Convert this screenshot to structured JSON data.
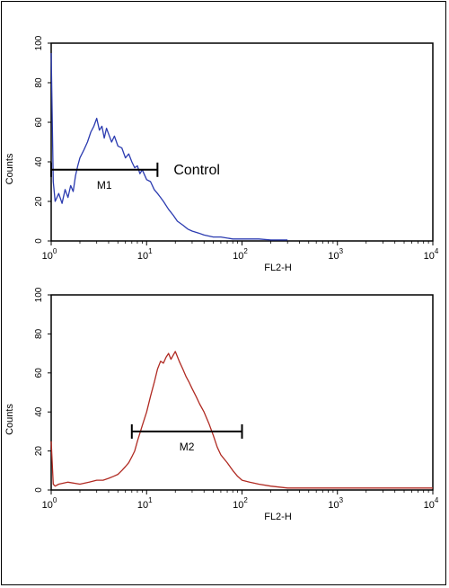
{
  "chart_data": [
    {
      "type": "line",
      "xscale": "log",
      "xlim": [
        1,
        10000
      ],
      "ylim": [
        0,
        100
      ],
      "xlabel": "FL2-H",
      "ylabel": "Counts",
      "y_ticks": [
        "0",
        "20",
        "40",
        "60",
        "80",
        "100"
      ],
      "x_ticks": [
        {
          "base": "10",
          "exp": "0"
        },
        {
          "base": "10",
          "exp": "1"
        },
        {
          "base": "10",
          "exp": "2"
        },
        {
          "base": "10",
          "exp": "3"
        },
        {
          "base": "10",
          "exp": "4"
        }
      ],
      "annotation": "Control",
      "series": [
        {
          "color": "#2b3bb0",
          "x": [
            1.0,
            1.05,
            1.1,
            1.2,
            1.3,
            1.4,
            1.5,
            1.6,
            1.7,
            1.8,
            1.9,
            2.0,
            2.2,
            2.4,
            2.6,
            2.8,
            3.0,
            3.2,
            3.4,
            3.6,
            3.8,
            4.0,
            4.3,
            4.6,
            5.0,
            5.5,
            6.0,
            6.5,
            7.0,
            7.5,
            8.0,
            8.5,
            9.0,
            10.0,
            11.0,
            12.0,
            13.0,
            14.0,
            15.0,
            17.0,
            19.0,
            21.0,
            24.0,
            27.0,
            30.0,
            35.0,
            40.0,
            50.0,
            60.0,
            80.0,
            100.0,
            150.0,
            200.0,
            300.0
          ],
          "y": [
            95,
            30,
            20,
            24,
            19,
            26,
            22,
            28,
            25,
            33,
            38,
            42,
            46,
            50,
            55,
            58,
            62,
            56,
            58,
            52,
            57,
            54,
            50,
            53,
            48,
            47,
            42,
            44,
            40,
            37,
            38,
            34,
            36,
            31,
            30,
            26,
            24,
            22,
            20,
            16,
            13,
            10,
            8,
            6,
            5,
            4,
            3,
            2,
            2,
            1,
            1,
            1,
            0.5,
            0.5
          ]
        }
      ],
      "markers": [
        {
          "label": "M1",
          "x_start": 1.0,
          "x_end": 13.0,
          "y": 36
        }
      ]
    },
    {
      "type": "line",
      "xscale": "log",
      "xlim": [
        1,
        10000
      ],
      "ylim": [
        0,
        100
      ],
      "xlabel": "FL2-H",
      "ylabel": "Counts",
      "y_ticks": [
        "0",
        "20",
        "40",
        "60",
        "80",
        "100"
      ],
      "x_ticks": [
        {
          "base": "10",
          "exp": "0"
        },
        {
          "base": "10",
          "exp": "1"
        },
        {
          "base": "10",
          "exp": "2"
        },
        {
          "base": "10",
          "exp": "3"
        },
        {
          "base": "10",
          "exp": "4"
        }
      ],
      "annotation": "",
      "series": [
        {
          "color": "#b02a22",
          "x": [
            1.0,
            1.05,
            1.1,
            1.2,
            1.5,
            2.0,
            2.5,
            3.0,
            3.5,
            4.0,
            4.5,
            5.0,
            5.5,
            6.0,
            6.5,
            7.0,
            7.5,
            8.0,
            9.0,
            10.0,
            11.0,
            12.0,
            13.0,
            14.0,
            15.0,
            16.0,
            17.0,
            18.0,
            20.0,
            22.0,
            24.0,
            26.0,
            28.0,
            30.0,
            33.0,
            36.0,
            40.0,
            45.0,
            50.0,
            55.0,
            60.0,
            70.0,
            80.0,
            90.0,
            100.0,
            120.0,
            150.0,
            200.0,
            300.0,
            500.0,
            1000.0,
            2000.0,
            5000.0,
            10000.0
          ],
          "y": [
            25,
            3,
            2,
            3,
            4,
            3,
            4,
            5,
            5,
            6,
            7,
            8,
            10,
            12,
            14,
            17,
            20,
            25,
            33,
            40,
            48,
            55,
            62,
            66,
            65,
            68,
            70,
            67,
            71,
            66,
            62,
            58,
            55,
            52,
            48,
            44,
            40,
            34,
            28,
            22,
            18,
            14,
            10,
            7,
            5,
            4,
            3,
            2,
            1,
            1,
            1,
            1,
            1,
            1
          ]
        }
      ],
      "markers": [
        {
          "label": "M2",
          "x_start": 7.0,
          "x_end": 100.0,
          "y": 30
        }
      ]
    }
  ]
}
